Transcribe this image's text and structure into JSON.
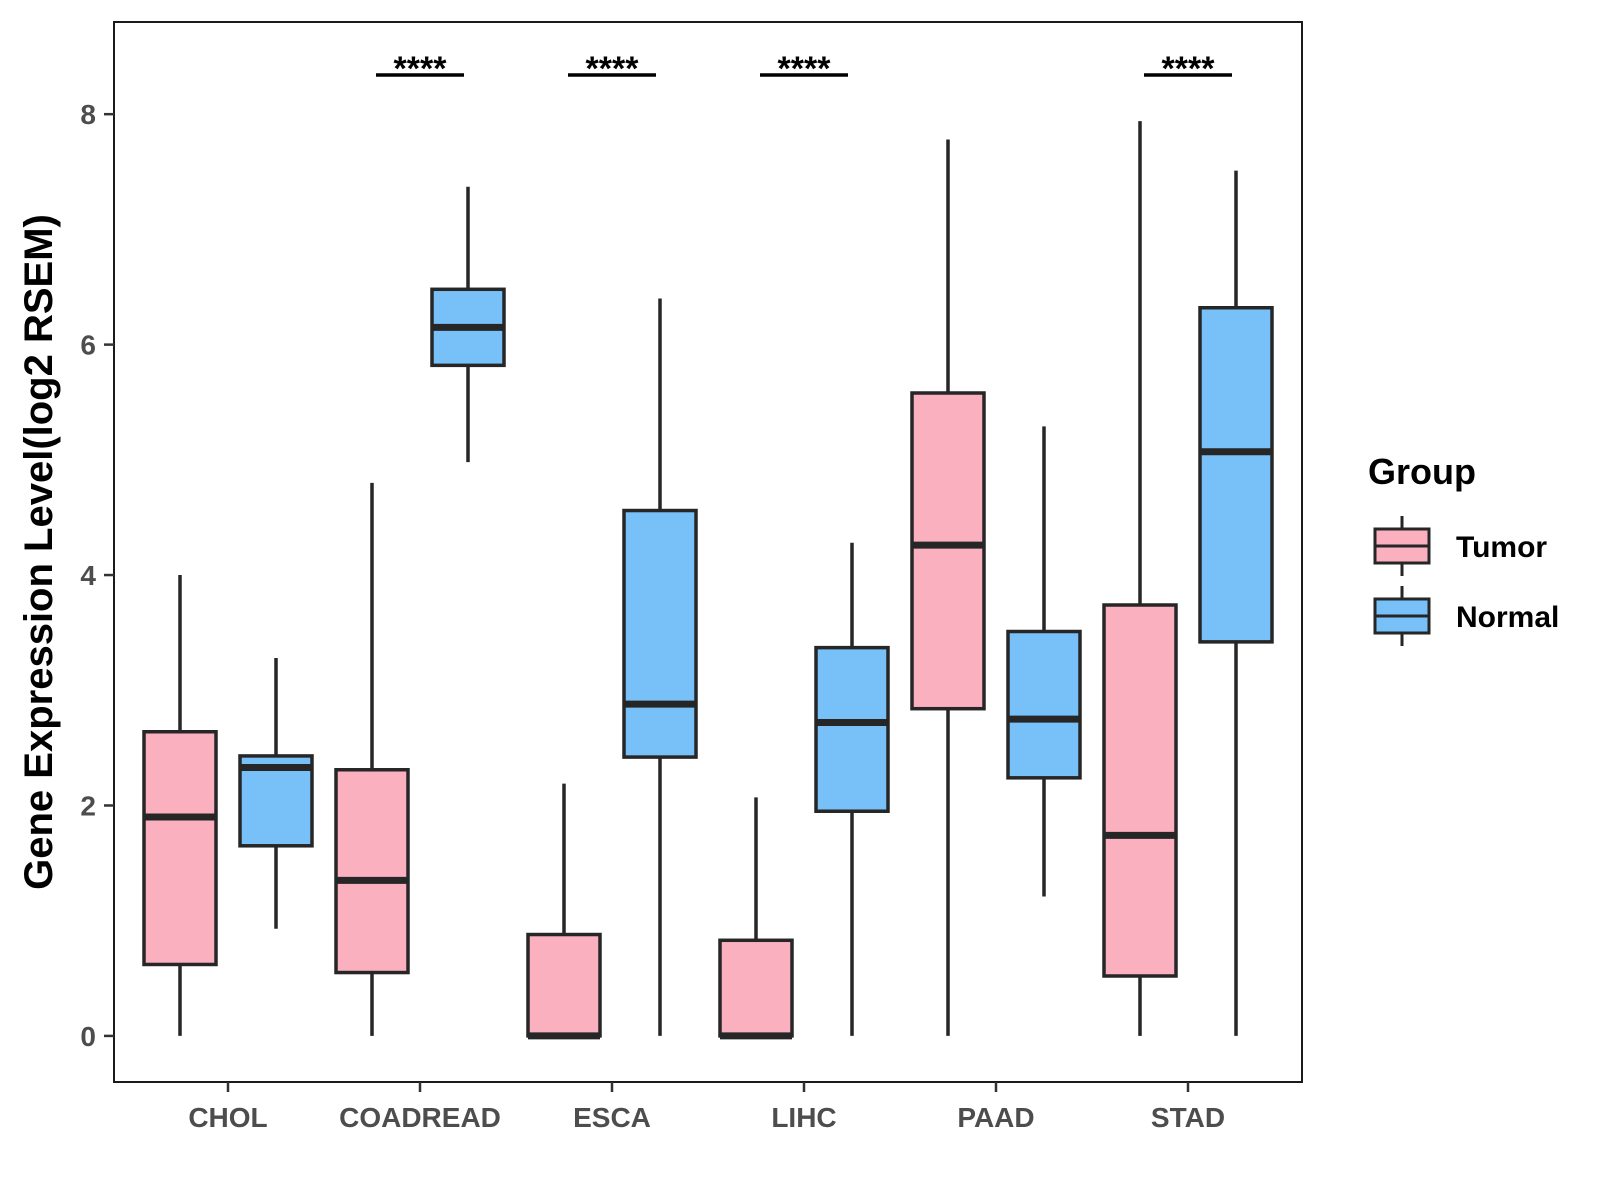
{
  "chart_data": {
    "type": "boxplot",
    "title": "",
    "xlabel": "",
    "ylabel": "Gene Expression Level(log2 RSEM)",
    "ylim": [
      -0.4,
      8.8
    ],
    "yticks": [
      0,
      2,
      4,
      6,
      8
    ],
    "grid": false,
    "legend": {
      "title": "Group",
      "position": "right",
      "entries": [
        {
          "name": "Tumor",
          "color": "#FBB0C0"
        },
        {
          "name": "Normal",
          "color": "#78C1F8"
        }
      ]
    },
    "categories": [
      "CHOL",
      "COADREAD",
      "ESCA",
      "LIHC",
      "PAAD",
      "STAD"
    ],
    "series": [
      {
        "name": "Tumor",
        "color": "#FBB0C0",
        "boxes": [
          {
            "min": 0.0,
            "q1": 0.62,
            "median": 1.9,
            "q3": 2.64,
            "max": 4.0
          },
          {
            "min": 0.0,
            "q1": 0.55,
            "median": 1.35,
            "q3": 2.31,
            "max": 4.8
          },
          {
            "min": 0.0,
            "q1": 0.0,
            "median": 0.0,
            "q3": 0.88,
            "max": 2.19
          },
          {
            "min": 0.0,
            "q1": 0.0,
            "median": 0.0,
            "q3": 0.83,
            "max": 2.07
          },
          {
            "min": 0.0,
            "q1": 2.84,
            "median": 4.26,
            "q3": 5.58,
            "max": 7.78
          },
          {
            "min": 0.0,
            "q1": 0.52,
            "median": 1.74,
            "q3": 3.74,
            "max": 7.94
          }
        ]
      },
      {
        "name": "Normal",
        "color": "#78C1F8",
        "boxes": [
          {
            "min": 0.93,
            "q1": 1.65,
            "median": 2.33,
            "q3": 2.43,
            "max": 3.28
          },
          {
            "min": 4.98,
            "q1": 5.82,
            "median": 6.15,
            "q3": 6.48,
            "max": 7.37
          },
          {
            "min": 0.0,
            "q1": 2.42,
            "median": 2.88,
            "q3": 4.56,
            "max": 6.4
          },
          {
            "min": 0.0,
            "q1": 1.95,
            "median": 2.72,
            "q3": 3.37,
            "max": 4.28
          },
          {
            "min": 1.21,
            "q1": 2.24,
            "median": 2.75,
            "q3": 3.51,
            "max": 5.29
          },
          {
            "min": 0.0,
            "q1": 3.42,
            "median": 5.07,
            "q3": 6.32,
            "max": 7.51
          }
        ]
      }
    ],
    "annotations": [
      {
        "category": "COADREAD",
        "text": "****"
      },
      {
        "category": "ESCA",
        "text": "****"
      },
      {
        "category": "LIHC",
        "text": "****"
      },
      {
        "category": "STAD",
        "text": "****"
      }
    ]
  }
}
